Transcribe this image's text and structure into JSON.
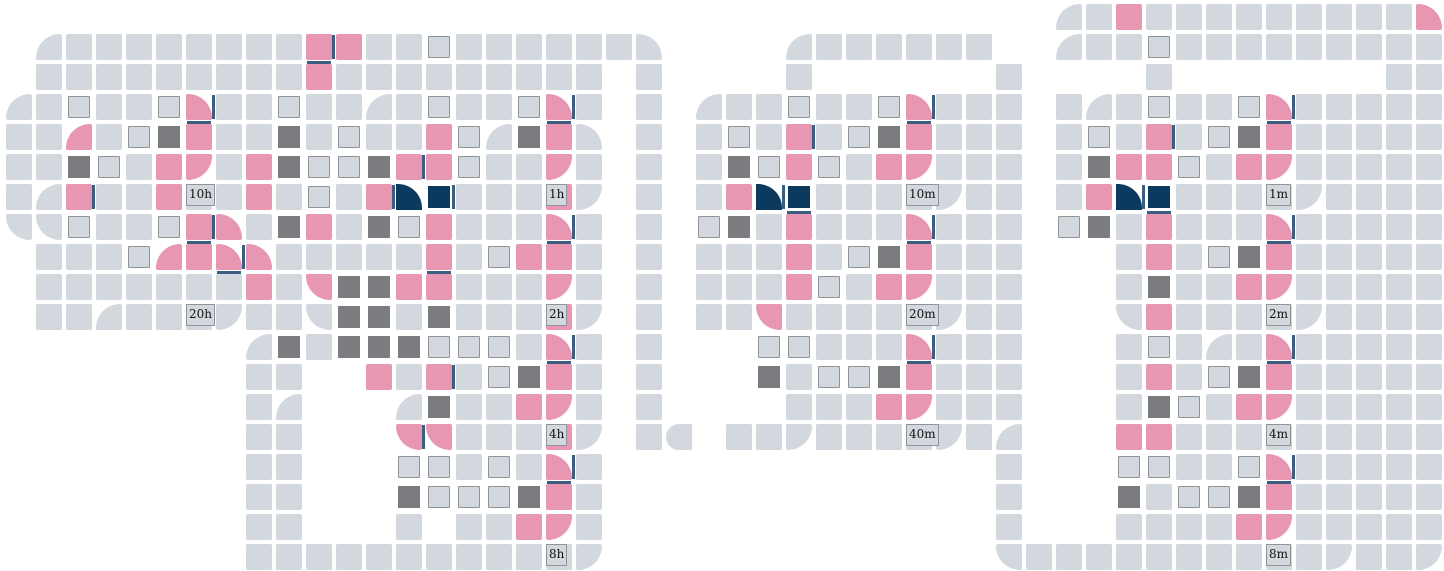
{
  "labels": {
    "h10": "10h",
    "h20": "20h",
    "h1": "1h",
    "h2": "2h",
    "h4": "4h",
    "h8": "8h",
    "m10": "10m",
    "m20": "20m",
    "m40": "40m",
    "m1": "1m",
    "m2": "2m",
    "m4": "4m",
    "m8": "8m"
  },
  "colors": {
    "track": "#d3d8df",
    "pink": "#e797b1",
    "gray": "#7a7c80",
    "navy": "#0c3a5e",
    "outline": "#909499",
    "bar": "#3b5f80"
  }
}
